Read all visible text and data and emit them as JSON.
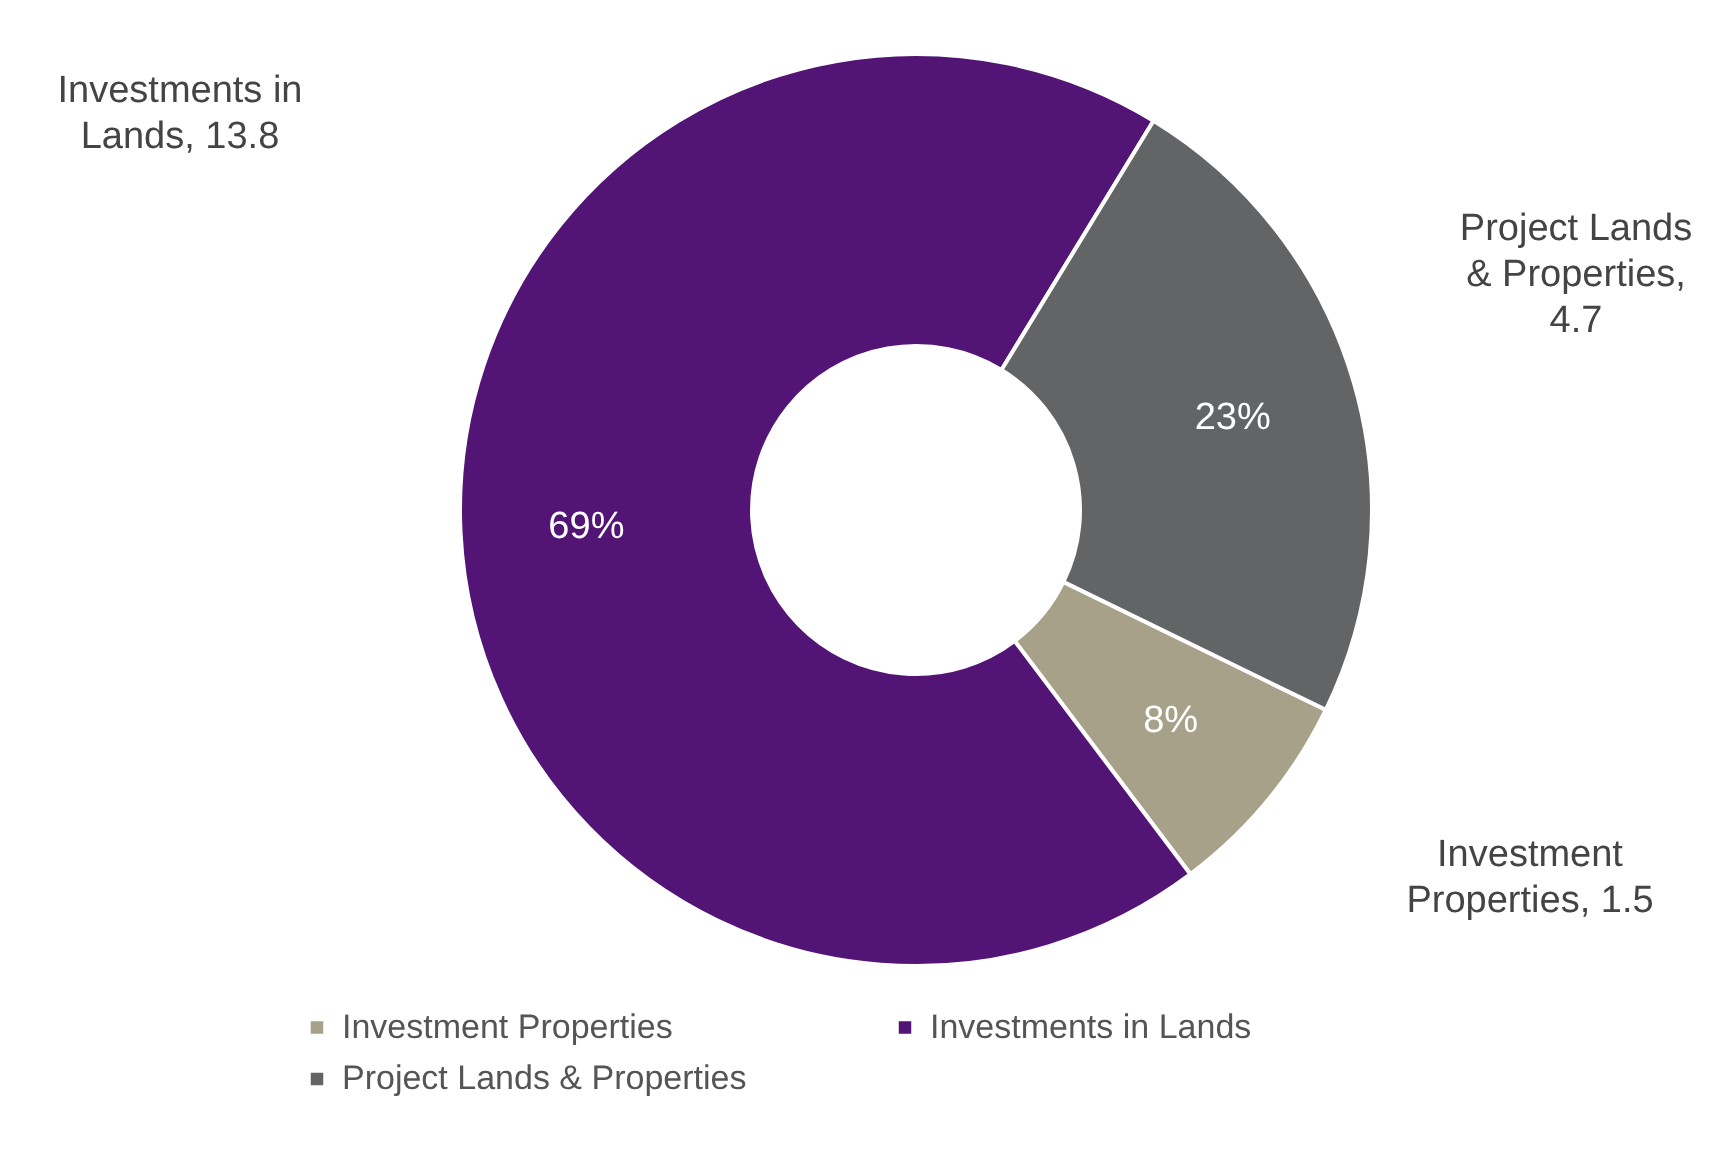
{
  "chart_data": {
    "type": "donut",
    "categories": [
      "Investment Properties",
      "Investments in Lands",
      "Project Lands & Properties"
    ],
    "values": [
      1.5,
      13.8,
      4.7
    ],
    "colors": [
      "#a8a18a",
      "#521475",
      "#636466"
    ],
    "value_labels": [
      "Investment\nProperties, 1.5",
      "Investments in\nLands, 13.8",
      "Project Lands\n& Properties,\n4.7"
    ],
    "annotations": [
      "8%",
      "69%",
      "23%"
    ],
    "legend": "bottom"
  }
}
